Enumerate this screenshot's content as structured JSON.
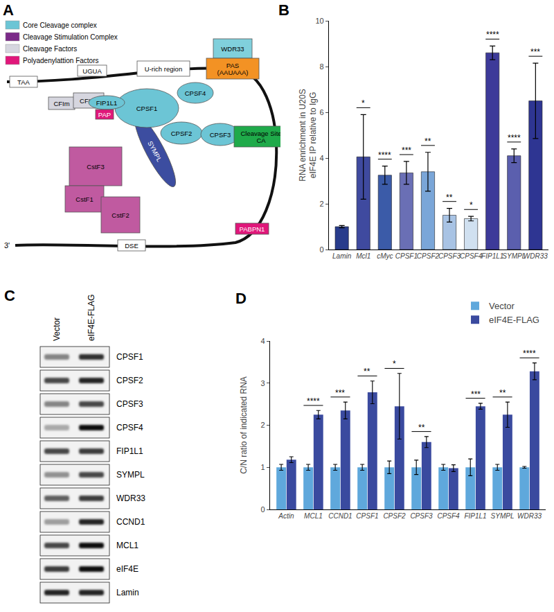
{
  "diagram": {
    "panel": "A",
    "legend": [
      {
        "label": "Core Cleavage complex",
        "color": "#6cc5d5"
      },
      {
        "label": "Cleavage Stimulation Complex",
        "color": "#7b2a88"
      },
      {
        "label": "Cleavage Factors",
        "color": "#d6d6df"
      },
      {
        "label": "Polyadenylattion Factors",
        "color": "#e0177a"
      }
    ],
    "nodes": [
      {
        "label": "TAA",
        "color": "#ffffff"
      },
      {
        "label": "UGUA",
        "color": "#ffffff"
      },
      {
        "label": "U-rich region",
        "color": "#ffffff"
      },
      {
        "label": "WDR33",
        "color": "#80d0dc"
      },
      {
        "label": "PAS\n(AAUAAA)",
        "color": "#f39224"
      },
      {
        "label": "CFIm",
        "color": "#d6d6df"
      },
      {
        "label": "CFIIm",
        "color": "#d6d6df"
      },
      {
        "label": "FIP1L1",
        "color": "#6cc5d5"
      },
      {
        "label": "PAP",
        "color": "#e0177a"
      },
      {
        "label": "CPSF1",
        "color": "#6cc5d5"
      },
      {
        "label": "CPSF4",
        "color": "#6cc5d5"
      },
      {
        "label": "SYMPL",
        "color": "#3c4da0"
      },
      {
        "label": "CPSF2",
        "color": "#6cc5d5"
      },
      {
        "label": "CPSF3",
        "color": "#6cc5d5"
      },
      {
        "label": "Cleavage Site\nCA",
        "color": "#1faa4a"
      },
      {
        "label": "CstF3",
        "color": "#c05aa0"
      },
      {
        "label": "CstF1",
        "color": "#c05aa0"
      },
      {
        "label": "CstF2",
        "color": "#c05aa0"
      },
      {
        "label": "DSE",
        "color": "#ffffff"
      },
      {
        "label": "PABPN1",
        "color": "#e0177a"
      }
    ],
    "end_label": "3'"
  },
  "chart_data": [
    {
      "panel": "B",
      "type": "bar",
      "y_label": "RNA enrichment in U20S\neIF4E IP relative to IgG",
      "categories": [
        "Lamin",
        "Mcl1",
        "cMyc",
        "CPSF1",
        "CPSF2",
        "CPSF3",
        "CPSF4",
        "FIP1L1",
        "SYMPL",
        "WDR33"
      ],
      "values": [
        1.0,
        4.05,
        3.25,
        3.35,
        3.4,
        1.5,
        1.35,
        8.6,
        4.1,
        6.5
      ],
      "errors": [
        0.05,
        1.85,
        0.4,
        0.5,
        0.85,
        0.3,
        0.1,
        0.3,
        0.3,
        1.65
      ],
      "significance": [
        null,
        "*",
        "****",
        "***",
        "**",
        "**",
        "*",
        "****",
        "****",
        "***"
      ],
      "colors": [
        "#283c8c",
        "#3f4a9f",
        "#3b5ba8",
        "#6a6fb5",
        "#7aa6d8",
        "#a8c3e4",
        "#d0e0f0",
        "#3d3a99",
        "#5b5fae",
        "#2e3592"
      ],
      "ylim": [
        0,
        10
      ],
      "yticks": [
        0,
        2,
        4,
        6,
        8,
        10
      ],
      "grid": false
    },
    {
      "panel": "D",
      "type": "bar",
      "y_label": "C/N ratio of indicated RNA",
      "categories": [
        "Actin",
        "MCL1",
        "CCND1",
        "CPSF1",
        "CPSF2",
        "CPSF3",
        "CPSF4",
        "FIP1L1",
        "SYMPL",
        "WDR33"
      ],
      "series": [
        {
          "name": "Vector",
          "color": "#5fa8dc",
          "values": [
            1.0,
            1.0,
            1.0,
            1.0,
            1.0,
            1.0,
            1.0,
            1.0,
            1.0,
            1.0
          ],
          "errors": [
            0.07,
            0.07,
            0.07,
            0.07,
            0.15,
            0.17,
            0.07,
            0.2,
            0.07,
            0.02
          ]
        },
        {
          "name": "eIF4E-FLAG",
          "color": "#3a4a9f",
          "values": [
            1.18,
            2.25,
            2.35,
            2.78,
            2.45,
            1.6,
            0.98,
            2.45,
            2.25,
            3.28
          ],
          "errors": [
            0.07,
            0.1,
            0.2,
            0.27,
            0.78,
            0.13,
            0.08,
            0.07,
            0.3,
            0.2
          ]
        }
      ],
      "significance": [
        null,
        "****",
        "***",
        "**",
        "*",
        "**",
        null,
        "***",
        "**",
        "****"
      ],
      "ylim": [
        0,
        4
      ],
      "yticks": [
        0,
        1,
        2,
        3,
        4
      ],
      "grid": false,
      "legend": "top-right"
    }
  ],
  "blot": {
    "panel": "C",
    "lanes": [
      "Vector",
      "eIF4E-FLAG"
    ],
    "rows": [
      {
        "label": "CPSF1",
        "intensity": [
          0.45,
          0.8
        ]
      },
      {
        "label": "CPSF2",
        "intensity": [
          0.7,
          0.85
        ]
      },
      {
        "label": "CPSF3",
        "intensity": [
          0.45,
          0.7
        ]
      },
      {
        "label": "CPSF4",
        "intensity": [
          0.3,
          0.95
        ]
      },
      {
        "label": "FIP1L1",
        "intensity": [
          0.7,
          0.75
        ]
      },
      {
        "label": "SYMPL",
        "intensity": [
          0.4,
          0.7
        ]
      },
      {
        "label": "WDR33",
        "intensity": [
          0.6,
          0.75
        ]
      },
      {
        "label": "CCND1",
        "intensity": [
          0.35,
          0.85
        ]
      },
      {
        "label": "MCL1",
        "intensity": [
          0.7,
          0.95
        ]
      },
      {
        "label": "eIF4E",
        "intensity": [
          0.75,
          0.95
        ]
      },
      {
        "label": "Lamin",
        "intensity": [
          0.85,
          0.85
        ]
      }
    ]
  }
}
